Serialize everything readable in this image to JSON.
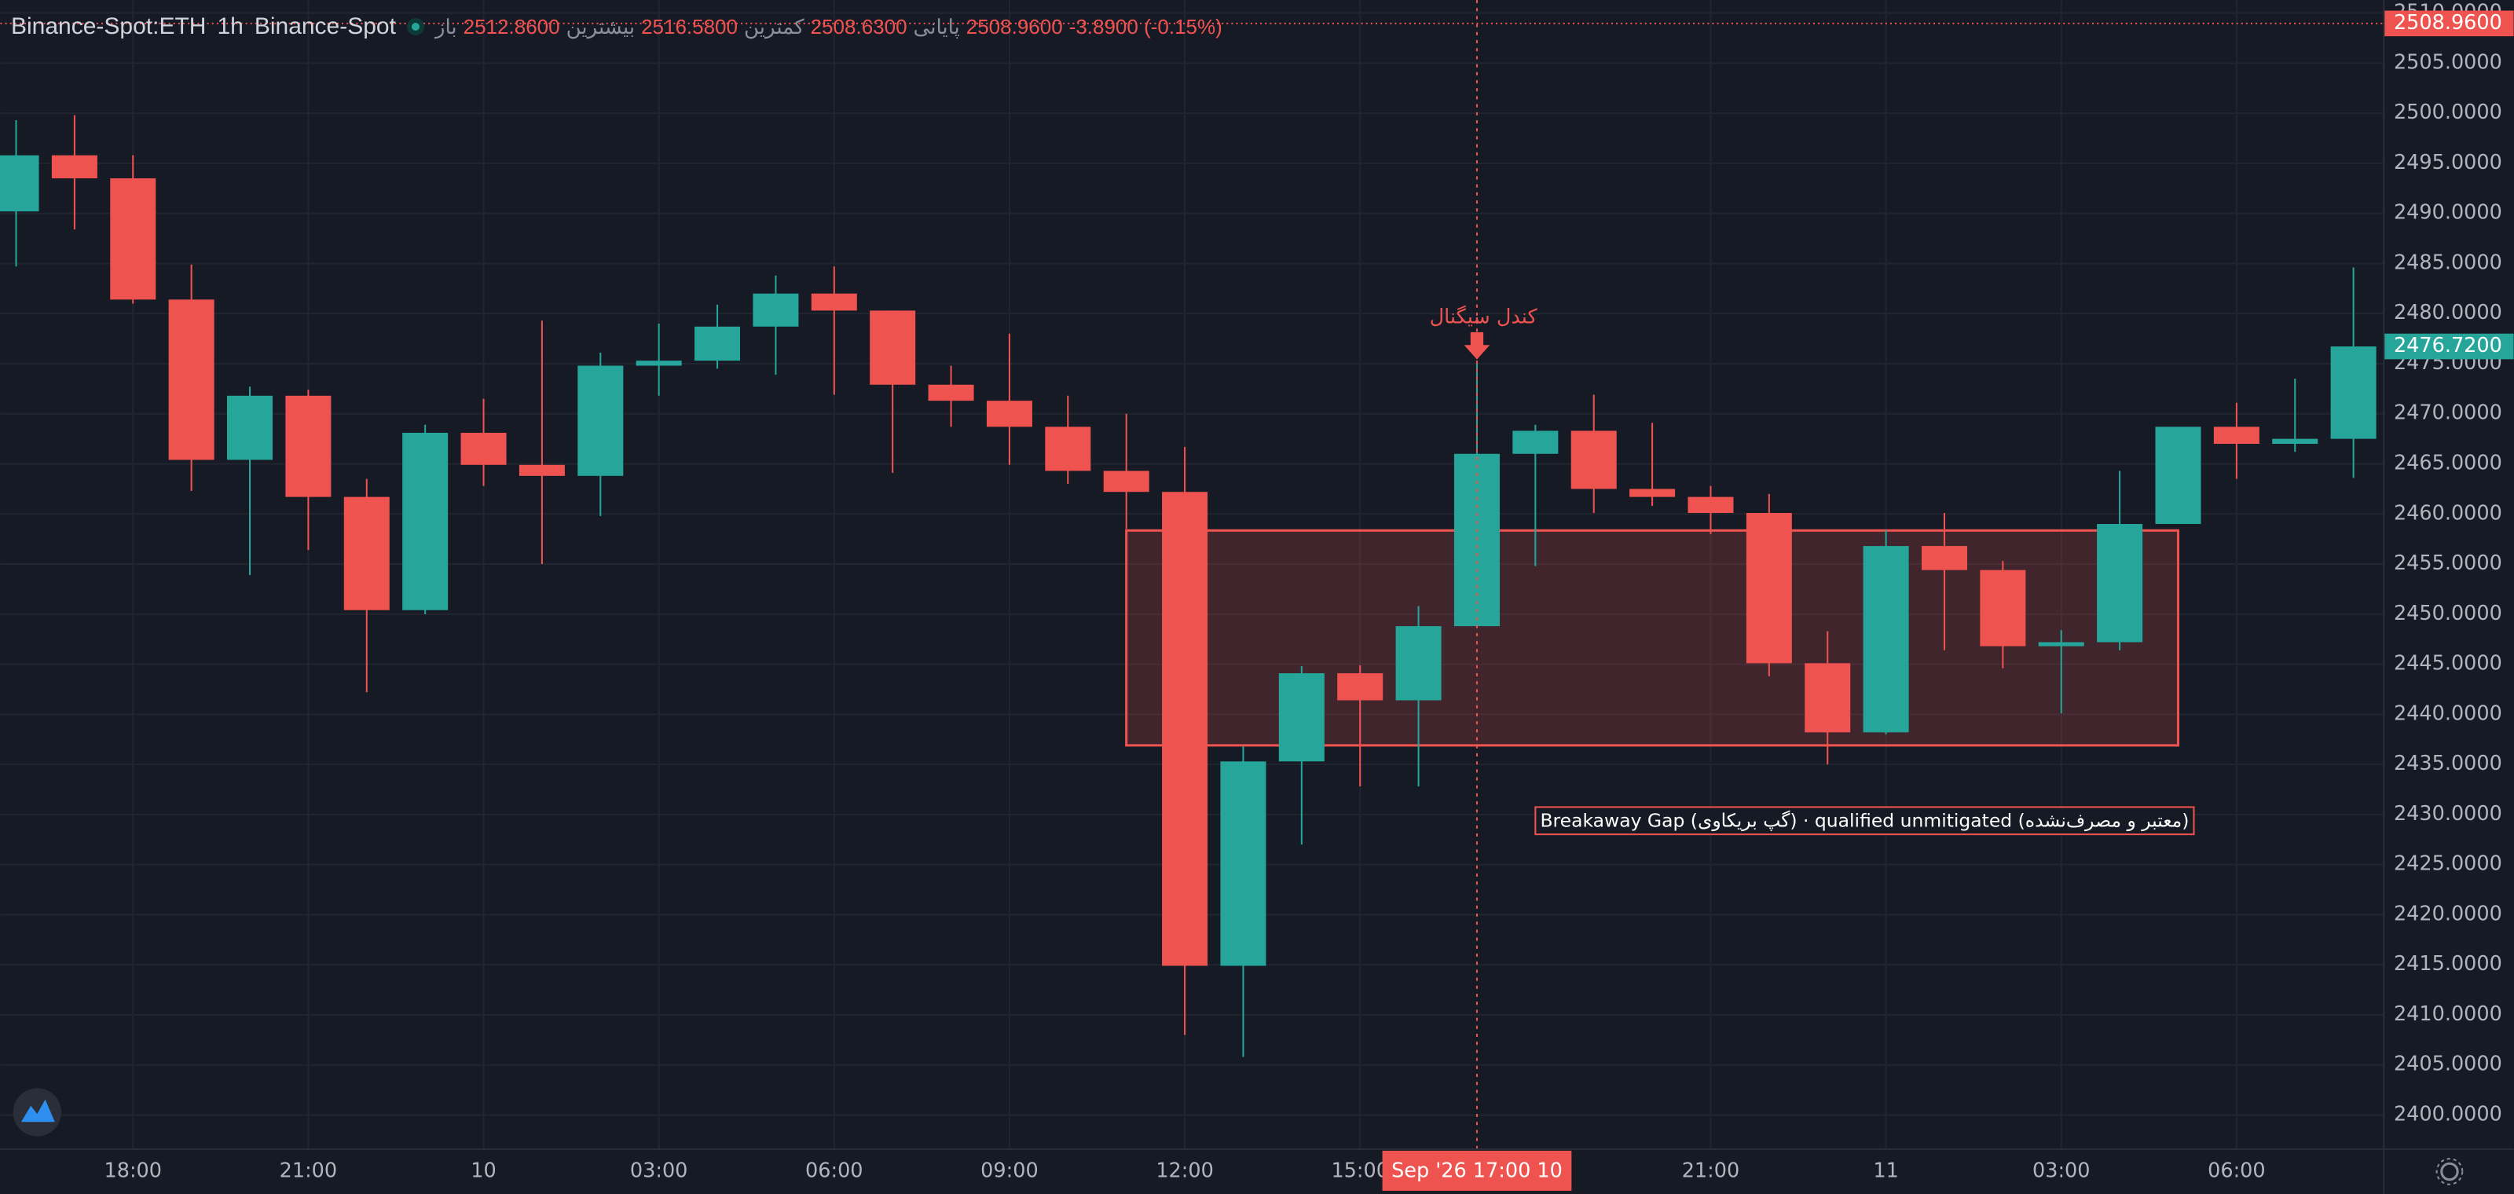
{
  "chart_data": {
    "type": "candlestick",
    "symbol": "Binance-Spot:ETH",
    "interval": "1h",
    "exchange": "Binance-Spot",
    "ohlc_legend": [
      {
        "label": "باز",
        "value": "2512.8600"
      },
      {
        "label": "بیشترین",
        "value": "2516.5800"
      },
      {
        "label": "کمترین",
        "value": "2508.6300"
      },
      {
        "label": "پایانی",
        "value": "2508.9600"
      }
    ],
    "change": "-3.8900 (-0.15%)",
    "up_color": "#26a69a",
    "down_color": "#ef5350",
    "open": [
      2490.2,
      2495.8,
      2493.5,
      2481.4,
      2465.4,
      2471.8,
      2461.7,
      2450.4,
      2468.1,
      2464.9,
      2463.8,
      2474.8,
      2475.3,
      2478.7,
      2482.0,
      2480.3,
      2472.9,
      2471.3,
      2468.7,
      2464.3,
      2462.2,
      2414.9,
      2435.3,
      2444.1,
      2441.4,
      2448.8,
      2466.0,
      2468.3,
      2462.5,
      2461.7,
      2460.1,
      2445.1,
      2438.2,
      2456.8,
      2454.4,
      2446.8,
      2447.2,
      2459.0,
      2468.7,
      2467.0,
      2467.5
    ],
    "high": [
      2499.3,
      2499.8,
      2495.8,
      2484.9,
      2472.7,
      2472.4,
      2463.5,
      2468.9,
      2471.5,
      2479.3,
      2476.1,
      2479.0,
      2480.9,
      2483.8,
      2484.7,
      2480.3,
      2474.8,
      2478.0,
      2471.8,
      2470.0,
      2466.7,
      2436.8,
      2444.8,
      2444.9,
      2450.8,
      2475.1,
      2468.9,
      2471.9,
      2469.1,
      2462.8,
      2462.0,
      2448.3,
      2458.4,
      2460.1,
      2455.3,
      2448.4,
      2464.3,
      2468.7,
      2471.1,
      2473.5,
      2484.6
    ],
    "low": [
      2484.7,
      2488.4,
      2481.0,
      2462.3,
      2453.9,
      2456.4,
      2442.2,
      2450.0,
      2462.8,
      2455.0,
      2459.8,
      2471.8,
      2474.5,
      2473.9,
      2471.9,
      2464.1,
      2468.7,
      2464.9,
      2463.0,
      2458.5,
      2408.0,
      2405.8,
      2427.0,
      2432.8,
      2432.8,
      2448.8,
      2454.8,
      2460.1,
      2460.8,
      2458.0,
      2443.8,
      2435.0,
      2438.0,
      2446.4,
      2444.6,
      2440.1,
      2446.4,
      2459.0,
      2463.5,
      2466.2,
      2463.6
    ],
    "close": [
      2495.8,
      2493.5,
      2481.4,
      2465.4,
      2471.8,
      2461.7,
      2450.4,
      2468.1,
      2464.9,
      2463.8,
      2474.8,
      2475.3,
      2478.7,
      2482.0,
      2480.3,
      2472.9,
      2471.3,
      2468.7,
      2464.3,
      2462.2,
      2414.9,
      2435.3,
      2444.1,
      2441.4,
      2448.8,
      2466.0,
      2468.3,
      2462.5,
      2461.7,
      2460.1,
      2445.1,
      2438.2,
      2456.8,
      2454.4,
      2446.8,
      2447.2,
      2459.0,
      2468.7,
      2467.0,
      2467.5,
      2476.72
    ],
    "xlim": [
      -0.27,
      40.52
    ],
    "ylim": [
      2396.6,
      2511.3
    ],
    "xticks": [
      {
        "value": 2,
        "label": "18:00"
      },
      {
        "value": 5,
        "label": "21:00"
      },
      {
        "value": 8,
        "label": "10"
      },
      {
        "value": 11,
        "label": "03:00"
      },
      {
        "value": 14,
        "label": "06:00"
      },
      {
        "value": 17,
        "label": "09:00"
      },
      {
        "value": 20,
        "label": "12:00"
      },
      {
        "value": 23,
        "label": "15:00"
      },
      {
        "value": 29,
        "label": "21:00"
      },
      {
        "value": 32,
        "label": "11"
      },
      {
        "value": 35,
        "label": "03:00"
      },
      {
        "value": 38,
        "label": "06:00"
      }
    ],
    "yticks": [
      {
        "value": 2400,
        "label": "2400.0000"
      },
      {
        "value": 2405,
        "label": "2405.0000"
      },
      {
        "value": 2410,
        "label": "2410.0000"
      },
      {
        "value": 2415,
        "label": "2415.0000"
      },
      {
        "value": 2420,
        "label": "2420.0000"
      },
      {
        "value": 2425,
        "label": "2425.0000"
      },
      {
        "value": 2430,
        "label": "2430.0000"
      },
      {
        "value": 2435,
        "label": "2435.0000"
      },
      {
        "value": 2440,
        "label": "2440.0000"
      },
      {
        "value": 2445,
        "label": "2445.0000"
      },
      {
        "value": 2450,
        "label": "2450.0000"
      },
      {
        "value": 2455,
        "label": "2455.0000"
      },
      {
        "value": 2460,
        "label": "2460.0000"
      },
      {
        "value": 2465,
        "label": "2465.0000"
      },
      {
        "value": 2470,
        "label": "2470.0000"
      },
      {
        "value": 2475,
        "label": "2475.0000"
      },
      {
        "value": 2480,
        "label": "2480.0000"
      },
      {
        "value": 2485,
        "label": "2485.0000"
      },
      {
        "value": 2490,
        "label": "2490.0000"
      },
      {
        "value": 2495,
        "label": "2495.0000"
      },
      {
        "value": 2500,
        "label": "2500.0000"
      },
      {
        "value": 2505,
        "label": "2505.0000"
      },
      {
        "value": 2510,
        "label": "2510.0000"
      }
    ],
    "grid": true,
    "price_line": {
      "value": 2508.96,
      "label": "2508.9600"
    },
    "last_price": {
      "value": 2476.72,
      "label": "2476.7200"
    },
    "crosshair": {
      "x": 25,
      "label": "Sep '26   17:00 10"
    },
    "zone": {
      "x0": 19,
      "x1": 37,
      "y0": 2436.9,
      "y1": 2458.35,
      "label": "Breakaway Gap (گپ بریکاوی) · qualified unmitigated (معتبر و مصرف‌نشده)"
    },
    "signal": {
      "x": 25,
      "label": "کندل سیگنال"
    }
  }
}
